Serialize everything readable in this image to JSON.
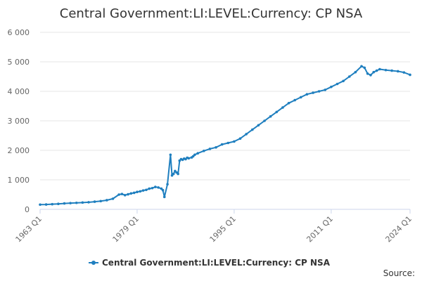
{
  "chart_data": {
    "type": "line",
    "title": "Central Government:LI:LEVEL:Currency: CP NSA",
    "xlabel": "",
    "ylabel": "",
    "ylim": [
      0,
      6000
    ],
    "yticks": [
      "0",
      "1 000",
      "2 000",
      "3 000",
      "4 000",
      "5 000",
      "6 000"
    ],
    "yticks_values": [
      0,
      1000,
      2000,
      3000,
      4000,
      5000,
      6000
    ],
    "xlim": [
      1963.0,
      2024.0
    ],
    "xticks": [
      "1963 Q1",
      "1979 Q1",
      "1995 Q1",
      "2011 Q1",
      "2024 Q1"
    ],
    "xticks_values": [
      1963.0,
      1979.0,
      1995.0,
      2011.0,
      2024.0
    ],
    "grid": true,
    "legend_position": "bottom-center",
    "series": [
      {
        "name": "Central Government:LI:LEVEL:Currency: CP NSA",
        "color": "#1f7fbf",
        "x": [
          1963.0,
          1964.0,
          1965.0,
          1966.0,
          1967.0,
          1968.0,
          1969.0,
          1970.0,
          1971.0,
          1972.0,
          1973.0,
          1974.0,
          1975.0,
          1976.0,
          1976.5,
          1977.0,
          1977.5,
          1978.0,
          1978.5,
          1979.0,
          1979.5,
          1980.0,
          1980.5,
          1981.0,
          1981.5,
          1982.0,
          1982.5,
          1983.0,
          1983.25,
          1983.5,
          1984.0,
          1984.5,
          1984.75,
          1985.0,
          1985.25,
          1985.5,
          1985.75,
          1986.0,
          1986.25,
          1986.5,
          1986.75,
          1987.0,
          1987.25,
          1987.5,
          1988.0,
          1988.25,
          1988.5,
          1989.0,
          1990.0,
          1991.0,
          1992.0,
          1993.0,
          1994.0,
          1995.0,
          1996.0,
          1997.0,
          1998.0,
          1999.0,
          2000.0,
          2001.0,
          2002.0,
          2003.0,
          2004.0,
          2005.0,
          2006.0,
          2007.0,
          2008.0,
          2009.0,
          2010.0,
          2011.0,
          2012.0,
          2013.0,
          2014.0,
          2015.0,
          2016.0,
          2016.5,
          2017.0,
          2017.5,
          2018.0,
          2018.5,
          2019.0,
          2020.0,
          2021.0,
          2022.0,
          2023.0,
          2024.0
        ],
        "values": [
          160,
          165,
          175,
          185,
          200,
          210,
          220,
          230,
          240,
          260,
          280,
          310,
          360,
          500,
          520,
          480,
          510,
          540,
          560,
          590,
          610,
          640,
          660,
          700,
          720,
          760,
          740,
          700,
          650,
          420,
          850,
          1850,
          1150,
          1200,
          1300,
          1250,
          1200,
          1650,
          1700,
          1680,
          1720,
          1700,
          1750,
          1730,
          1760,
          1800,
          1850,
          1900,
          1980,
          2050,
          2100,
          2200,
          2250,
          2300,
          2400,
          2550,
          2700,
          2850,
          3000,
          3150,
          3300,
          3450,
          3600,
          3700,
          3800,
          3900,
          3950,
          4000,
          4050,
          4150,
          4250,
          4350,
          4500,
          4650,
          4850,
          4800,
          4600,
          4550,
          4650,
          4700,
          4750,
          4720,
          4700,
          4680,
          4640,
          4560
        ]
      }
    ],
    "source_text": "Source:"
  }
}
